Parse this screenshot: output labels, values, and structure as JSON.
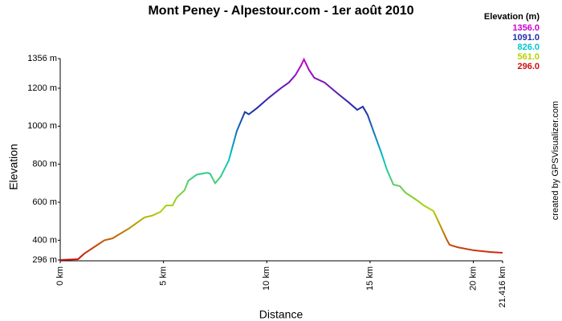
{
  "chart_data": {
    "type": "line",
    "title": "Mont Peney - Alpestour.com - 1er août 2010",
    "x_label": "Distance",
    "y_label": "Elevation",
    "credit": "created by GPSVisualizer.com",
    "legend": {
      "title": "Elevation (m)",
      "stops": [
        {
          "value": 1356,
          "label": "1356.0",
          "color": "#cc00cc"
        },
        {
          "value": 1091,
          "label": "1091.0",
          "color": "#1e2ea8"
        },
        {
          "value": 826,
          "label": "826.0",
          "color": "#00c8c8"
        },
        {
          "value": 561,
          "label": "561.0",
          "color": "#b4d200"
        },
        {
          "value": 296,
          "label": "296.0",
          "color": "#cc1010"
        }
      ]
    },
    "x": [
      0,
      0.86,
      1.17,
      2.14,
      2.53,
      3.3,
      4.08,
      4.47,
      4.86,
      5.13,
      5.44,
      5.64,
      6.02,
      6.2,
      6.6,
      7.1,
      7.26,
      7.5,
      7.77,
      8.16,
      8.55,
      8.94,
      9.13,
      9.52,
      10.1,
      10.68,
      11.07,
      11.38,
      11.66,
      11.8,
      12.04,
      12.3,
      12.8,
      13.4,
      13.98,
      14.38,
      14.65,
      14.88,
      15.16,
      15.54,
      15.82,
      16.13,
      16.44,
      16.71,
      17.3,
      17.6,
      18.07,
      18.38,
      18.7,
      18.85,
      19.24,
      20.02,
      20.8,
      21.416
    ],
    "y": [
      296,
      300,
      330,
      400,
      410,
      460,
      520,
      530,
      550,
      583,
      583,
      625,
      663,
      713,
      745,
      755,
      750,
      700,
      735,
      820,
      975,
      1075,
      1063,
      1095,
      1150,
      1200,
      1230,
      1268,
      1320,
      1352,
      1297,
      1255,
      1230,
      1175,
      1124,
      1086,
      1103,
      1060,
      975,
      862,
      770,
      693,
      685,
      651,
      608,
      583,
      554,
      482,
      406,
      376,
      363,
      347,
      338,
      334
    ],
    "xlim": [
      0,
      21.416
    ],
    "ylim": [
      296,
      1356
    ],
    "xticks": [
      {
        "value": 0,
        "label": "0 km"
      },
      {
        "value": 5,
        "label": "5 km"
      },
      {
        "value": 10,
        "label": "10 km"
      },
      {
        "value": 15,
        "label": "15 km"
      },
      {
        "value": 20,
        "label": "20 km"
      },
      {
        "value": 21.416,
        "label": "21.416 km"
      }
    ],
    "yticks": [
      {
        "value": 296,
        "label": "296 m"
      },
      {
        "value": 400,
        "label": "400 m"
      },
      {
        "value": 600,
        "label": "600 m"
      },
      {
        "value": 800,
        "label": "800 m"
      },
      {
        "value": 1000,
        "label": "1000 m"
      },
      {
        "value": 1200,
        "label": "1200 m"
      },
      {
        "value": 1356,
        "label": "1356 m"
      }
    ]
  }
}
